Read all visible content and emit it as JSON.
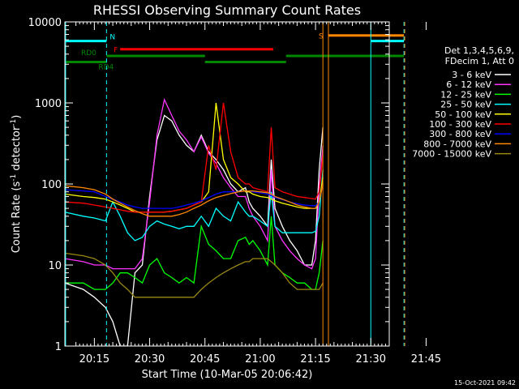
{
  "chart_data": {
    "type": "line",
    "title": "RHESSI Observing Summary Count Rates",
    "xlabel": "Start Time (10-Mar-05 20:06:42)",
    "ylabel": "Count Rate (s",
    "ylabel_sup": "-1",
    "ylabel_mid": " detector",
    "ylabel_end": ")",
    "yscale": "log",
    "ylim": [
      1,
      10000
    ],
    "xlim_min": [
      7,
      95
    ],
    "y_ticks": [
      {
        "v": 1,
        "label": "1"
      },
      {
        "v": 10,
        "label": "10"
      },
      {
        "v": 100,
        "label": "100"
      },
      {
        "v": 1000,
        "label": "1000"
      },
      {
        "v": 10000,
        "label": "10000"
      }
    ],
    "x_ticks": [
      {
        "m": 15,
        "label": "20:15"
      },
      {
        "m": 30,
        "label": "20:30"
      },
      {
        "m": 45,
        "label": "20:45"
      },
      {
        "m": 60,
        "label": "21:00"
      },
      {
        "m": 75,
        "label": "21:15"
      },
      {
        "m": 90,
        "label": "21:30"
      },
      {
        "m": 105,
        "label": "21:45"
      }
    ],
    "legend_header": [
      "Det 1,3,4,5,6,9,",
      "FDecim 1, Att 0"
    ],
    "series": [
      {
        "name": "3 - 6 keV",
        "color": "#ffffff",
        "x": [
          7,
          12,
          15,
          18,
          20,
          22,
          24,
          26,
          28,
          30,
          32,
          34,
          36,
          38,
          40,
          42,
          44,
          46,
          48,
          50,
          52,
          54,
          56,
          57,
          58,
          60,
          62,
          63,
          64,
          66,
          68,
          70,
          72,
          74,
          75,
          76,
          77
        ],
        "y": [
          6,
          5,
          4,
          3,
          2,
          1,
          1,
          8,
          10,
          70,
          350,
          700,
          600,
          400,
          300,
          250,
          400,
          250,
          200,
          150,
          100,
          80,
          90,
          60,
          50,
          40,
          30,
          200,
          50,
          30,
          20,
          15,
          10,
          10,
          20,
          150,
          500
        ]
      },
      {
        "name": "6 - 12 keV",
        "color": "#ff33ff",
        "x": [
          7,
          12,
          15,
          18,
          20,
          22,
          24,
          26,
          28,
          30,
          32,
          34,
          36,
          38,
          40,
          42,
          44,
          46,
          48,
          50,
          52,
          54,
          56,
          57,
          58,
          60,
          62,
          63,
          64,
          66,
          68,
          70,
          72,
          74,
          75,
          76,
          77
        ],
        "y": [
          12,
          11,
          10,
          10,
          9,
          9,
          9,
          9,
          12,
          60,
          400,
          1100,
          700,
          450,
          350,
          250,
          380,
          240,
          180,
          120,
          90,
          70,
          70,
          50,
          40,
          30,
          20,
          150,
          30,
          20,
          15,
          12,
          10,
          9,
          12,
          90,
          300
        ]
      },
      {
        "name": "12 - 25 keV",
        "color": "#00ff00",
        "x": [
          7,
          12,
          15,
          18,
          20,
          22,
          24,
          26,
          28,
          30,
          32,
          34,
          36,
          38,
          40,
          42,
          44,
          46,
          48,
          50,
          52,
          54,
          56,
          57,
          58,
          60,
          62,
          63,
          64,
          66,
          68,
          70,
          72,
          74,
          75,
          76,
          77
        ],
        "y": [
          6,
          6,
          5,
          5,
          6,
          8,
          8,
          7,
          6,
          10,
          12,
          8,
          7,
          6,
          7,
          6,
          30,
          18,
          15,
          12,
          12,
          20,
          22,
          18,
          20,
          15,
          10,
          40,
          10,
          8,
          7,
          6,
          6,
          5,
          5,
          8,
          20
        ]
      },
      {
        "name": "25 - 50 keV",
        "color": "#00ffff",
        "x": [
          7,
          12,
          15,
          18,
          20,
          22,
          24,
          26,
          28,
          30,
          32,
          34,
          36,
          38,
          40,
          42,
          44,
          46,
          48,
          50,
          52,
          54,
          56,
          57,
          58,
          60,
          62,
          63,
          64,
          66,
          68,
          70,
          72,
          74,
          75,
          76,
          77
        ],
        "y": [
          45,
          40,
          38,
          35,
          60,
          40,
          25,
          20,
          22,
          30,
          35,
          32,
          30,
          28,
          30,
          30,
          40,
          30,
          50,
          40,
          35,
          60,
          45,
          40,
          40,
          35,
          30,
          80,
          30,
          25,
          25,
          25,
          25,
          25,
          26,
          40,
          150
        ]
      },
      {
        "name": "50 - 100 keV",
        "color": "#ffff00",
        "x": [
          7,
          12,
          15,
          18,
          20,
          22,
          24,
          26,
          28,
          30,
          32,
          34,
          36,
          38,
          40,
          42,
          44,
          46,
          48,
          50,
          52,
          54,
          56,
          57,
          58,
          60,
          62,
          63,
          64,
          66,
          68,
          70,
          72,
          74,
          75,
          76,
          77
        ],
        "y": [
          75,
          70,
          68,
          65,
          60,
          55,
          50,
          45,
          45,
          45,
          45,
          45,
          46,
          48,
          50,
          55,
          60,
          80,
          1000,
          200,
          120,
          100,
          80,
          80,
          75,
          70,
          68,
          65,
          62,
          58,
          55,
          52,
          50,
          50,
          50,
          60,
          120
        ]
      },
      {
        "name": "100 - 300 keV",
        "color": "#ff0000",
        "x": [
          7,
          12,
          15,
          18,
          20,
          22,
          24,
          26,
          28,
          30,
          32,
          34,
          36,
          38,
          40,
          42,
          44,
          46,
          48,
          50,
          52,
          54,
          56,
          57,
          58,
          60,
          62,
          63,
          64,
          66,
          68,
          70,
          72,
          74,
          75,
          76,
          77
        ],
        "y": [
          60,
          58,
          55,
          52,
          50,
          48,
          46,
          45,
          45,
          45,
          45,
          45,
          46,
          48,
          50,
          55,
          60,
          300,
          150,
          1000,
          250,
          120,
          100,
          100,
          90,
          85,
          80,
          500,
          90,
          80,
          75,
          70,
          68,
          66,
          65,
          80,
          230
        ]
      },
      {
        "name": "300 - 800 keV",
        "color": "#0000ff",
        "x": [
          7,
          12,
          15,
          18,
          20,
          22,
          24,
          26,
          28,
          30,
          32,
          34,
          36,
          38,
          40,
          42,
          44,
          46,
          48,
          50,
          52,
          54,
          56,
          57,
          58,
          60,
          62,
          63,
          64,
          66,
          68,
          70,
          72,
          74,
          75,
          76,
          77
        ],
        "y": [
          85,
          82,
          80,
          70,
          65,
          60,
          55,
          52,
          50,
          50,
          50,
          50,
          50,
          52,
          55,
          58,
          62,
          68,
          75,
          80,
          80,
          80,
          82,
          82,
          80,
          78,
          75,
          72,
          68,
          64,
          60,
          57,
          55,
          54,
          54,
          60,
          100
        ]
      },
      {
        "name": "800 - 7000 keV",
        "color": "#ff8800",
        "x": [
          7,
          12,
          15,
          18,
          20,
          22,
          24,
          26,
          28,
          30,
          32,
          34,
          36,
          38,
          40,
          42,
          44,
          46,
          48,
          50,
          52,
          54,
          56,
          57,
          58,
          60,
          62,
          63,
          64,
          66,
          68,
          70,
          72,
          74,
          75,
          76,
          77
        ],
        "y": [
          95,
          90,
          85,
          75,
          65,
          58,
          52,
          47,
          43,
          40,
          40,
          40,
          40,
          42,
          45,
          50,
          55,
          62,
          68,
          72,
          76,
          80,
          82,
          82,
          82,
          80,
          78,
          75,
          70,
          65,
          60,
          55,
          52,
          50,
          50,
          60,
          100
        ]
      },
      {
        "name": "7000 - 15000 keV",
        "color": "#998811",
        "x": [
          7,
          12,
          15,
          18,
          20,
          22,
          24,
          26,
          28,
          30,
          32,
          34,
          36,
          38,
          40,
          42,
          44,
          46,
          48,
          50,
          52,
          54,
          56,
          57,
          58,
          60,
          62,
          63,
          64,
          66,
          68,
          70,
          72,
          74,
          75,
          76,
          77
        ],
        "y": [
          14,
          13,
          12,
          10,
          8,
          6,
          5,
          4,
          4,
          4,
          4,
          4,
          4,
          4,
          4,
          4,
          5,
          6,
          7,
          8,
          9,
          10,
          11,
          11,
          12,
          12,
          12,
          11,
          10,
          8,
          6,
          5,
          5,
          5,
          5,
          5,
          6
        ]
      }
    ],
    "flag_bars": [
      {
        "label": "N",
        "color": "#00ffff",
        "y": 5800,
        "segments": [
          [
            7,
            18.3
          ],
          [
            90,
            99
          ]
        ]
      },
      {
        "label": "F",
        "color": "#ff0000",
        "y": 4600,
        "segments": [
          [
            22,
            63.5
          ]
        ]
      },
      {
        "label": "S",
        "color": "#ff8800",
        "y": 6800,
        "segments": [
          [
            78.5,
            99
          ]
        ]
      },
      {
        "label": "RD0",
        "color": "#008800",
        "y": 3800,
        "segments": [
          [
            18.3,
            45
          ],
          [
            67,
            99
          ]
        ]
      },
      {
        "label": "RD4",
        "color": "#008800",
        "y": 3200,
        "segments": [
          [
            7,
            18.3
          ],
          [
            45,
            67
          ]
        ]
      }
    ],
    "vertical_lines": [
      {
        "m": 7.2,
        "color": "#00ffff",
        "style": "solid"
      },
      {
        "m": 18.3,
        "color": "#00ffff",
        "style": "dashed"
      },
      {
        "m": 77,
        "color": "#ff8800",
        "style": "solid"
      },
      {
        "m": 78.5,
        "color": "#ff8800",
        "style": "solid"
      },
      {
        "m": 90,
        "color": "#00ffff",
        "style": "solid"
      },
      {
        "m": 99,
        "color": "#00ffff",
        "style": "dashed"
      },
      {
        "m": 99.2,
        "color": "#ff8800",
        "style": "dashed"
      }
    ],
    "grid": false,
    "legend_position": "right"
  },
  "footer_date": "15-Oct-2021 09:42"
}
